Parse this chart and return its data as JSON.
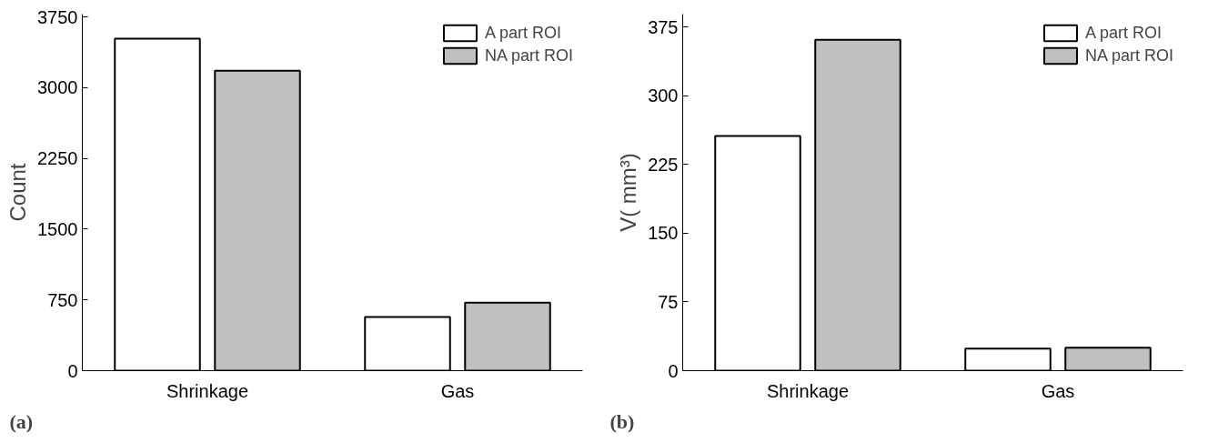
{
  "chart_data": [
    {
      "type": "bar",
      "categories": [
        "Shrinkage",
        "Gas"
      ],
      "ylabel": "Count",
      "ylim": [
        0,
        3780
      ],
      "yticks": [
        0,
        750,
        1500,
        2250,
        3000,
        3750
      ],
      "series": [
        {
          "name": "A part ROI",
          "color": "#ffffff",
          "values": [
            3520,
            570
          ]
        },
        {
          "name": "NA part ROI",
          "color": "#c0c0c0",
          "values": [
            3180,
            720
          ]
        }
      ],
      "legend": "top right",
      "grid": false,
      "annotations": [
        "(a)"
      ]
    },
    {
      "type": "bar",
      "categories": [
        "Shrinkage",
        "Gas"
      ],
      "ylabel": "V( mm³)",
      "ylim": [
        0,
        389
      ],
      "yticks": [
        0,
        75,
        150,
        225,
        300,
        375
      ],
      "series": [
        {
          "name": "A part ROI",
          "color": "#ffffff",
          "values": [
            256,
            24
          ]
        },
        {
          "name": "NA part ROI",
          "color": "#c0c0c0",
          "values": [
            361,
            25
          ]
        }
      ],
      "legend": "top right",
      "grid": false,
      "annotations": [
        "(b)"
      ]
    }
  ]
}
